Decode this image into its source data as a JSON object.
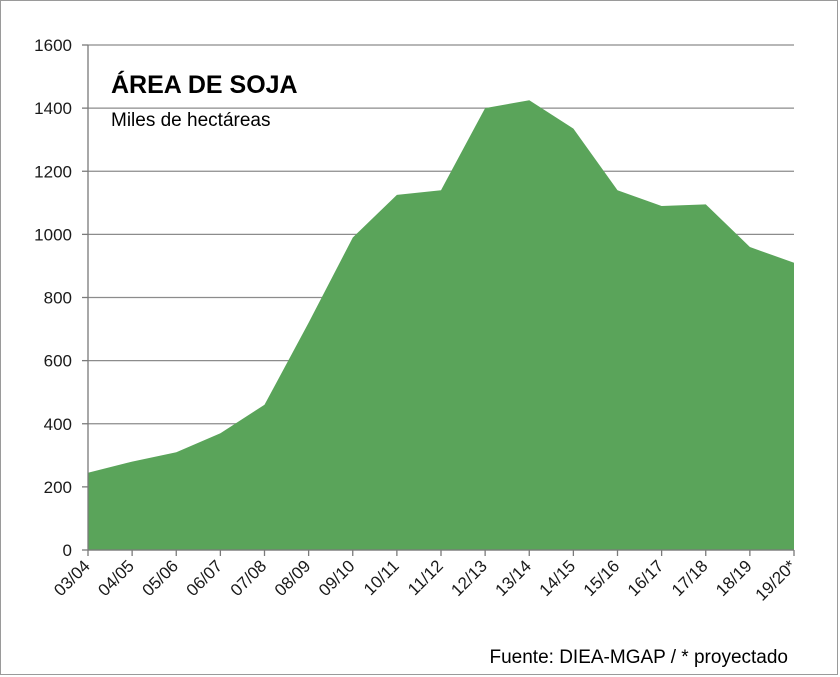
{
  "chart_data": {
    "type": "area",
    "title": "ÁREA DE SOJA",
    "subtitle": "Miles de hectáreas",
    "source": "Fuente: DIEA-MGAP / * proyectado",
    "categories": [
      "03/04",
      "04/05",
      "05/06",
      "06/07",
      "07/08",
      "08/09",
      "09/10",
      "10/11",
      "11/12",
      "12/13",
      "13/14",
      "14/15",
      "15/16",
      "16/17",
      "17/18",
      "18/19",
      "19/20*"
    ],
    "values": [
      245,
      280,
      310,
      370,
      460,
      720,
      990,
      1125,
      1140,
      1400,
      1425,
      1335,
      1140,
      1090,
      1095,
      960,
      910
    ],
    "yticks": [
      0,
      200,
      400,
      600,
      800,
      1000,
      1200,
      1400,
      1600
    ],
    "ylim": [
      0,
      1600
    ],
    "grid": true,
    "legend": "none",
    "fill_color": "#5aa45a",
    "gridline_color": "#8c8c8c"
  }
}
